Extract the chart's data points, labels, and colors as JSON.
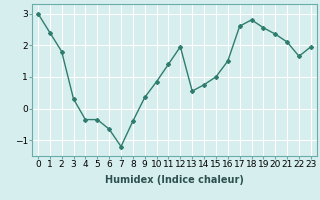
{
  "x": [
    0,
    1,
    2,
    3,
    4,
    5,
    6,
    7,
    8,
    9,
    10,
    11,
    12,
    13,
    14,
    15,
    16,
    17,
    18,
    19,
    20,
    21,
    22,
    23
  ],
  "y": [
    3.0,
    2.4,
    1.8,
    0.3,
    -0.35,
    -0.35,
    -0.65,
    -1.2,
    -0.4,
    0.35,
    0.85,
    1.4,
    1.95,
    0.55,
    0.75,
    1.0,
    1.5,
    2.6,
    2.8,
    2.55,
    2.35,
    2.1,
    1.65,
    1.95
  ],
  "line_color": "#2e7d6e",
  "marker": "D",
  "marker_size": 2,
  "bg_color": "#d6eeee",
  "grid_color": "#ffffff",
  "xlabel": "Humidex (Indice chaleur)",
  "xlabel_fontsize": 7,
  "tick_fontsize": 6.5,
  "ylim": [
    -1.5,
    3.3
  ],
  "yticks": [
    -1,
    0,
    1,
    2,
    3
  ],
  "xticks": [
    0,
    1,
    2,
    3,
    4,
    5,
    6,
    7,
    8,
    9,
    10,
    11,
    12,
    13,
    14,
    15,
    16,
    17,
    18,
    19,
    20,
    21,
    22,
    23
  ],
  "xtick_labels": [
    "0",
    "1",
    "2",
    "3",
    "4",
    "5",
    "6",
    "7",
    "8",
    "9",
    "10",
    "11",
    "12",
    "13",
    "14",
    "15",
    "16",
    "17",
    "18",
    "19",
    "20",
    "21",
    "22",
    "23"
  ],
  "line_width": 1.0
}
